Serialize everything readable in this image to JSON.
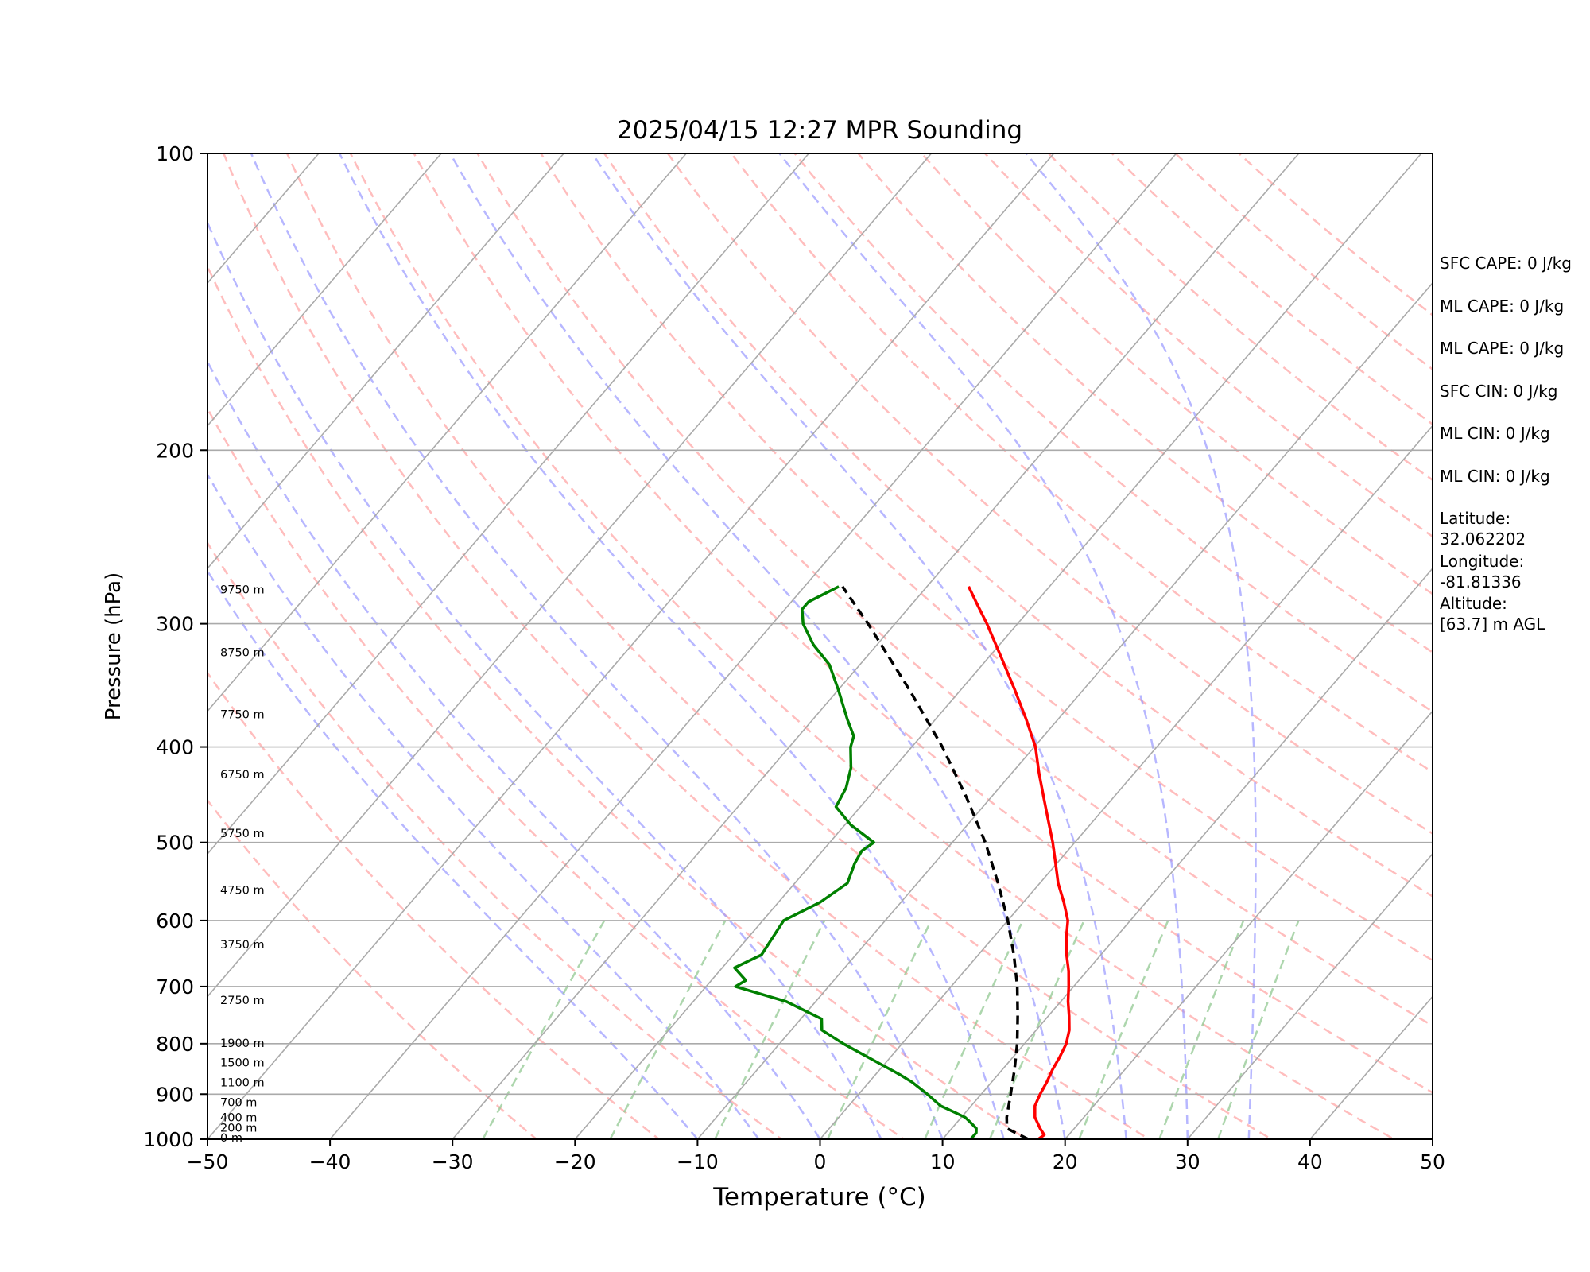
{
  "chart_data": {
    "type": "line",
    "title": "2025/04/15 12:27 MPR Sounding",
    "xlabel": "Temperature (°C)",
    "ylabel": "Pressure (hPa)",
    "xlim": [
      -50,
      50
    ],
    "ylim": [
      1000,
      100
    ],
    "y_scale": "log",
    "x_ticks": [
      "−50",
      "−40",
      "−30",
      "−20",
      "−10",
      "0",
      "10",
      "20",
      "30",
      "40",
      "50"
    ],
    "y_ticks": [
      "100",
      "200",
      "300",
      "400",
      "500",
      "600",
      "700",
      "800",
      "900",
      "1000"
    ],
    "grid": true,
    "series": [
      {
        "color": "#ff0000",
        "points": [
          [
            1000,
            17.8
          ],
          [
            990,
            18.0
          ],
          [
            975,
            17.2
          ],
          [
            950,
            16.0
          ],
          [
            925,
            15.2
          ],
          [
            900,
            14.8
          ],
          [
            875,
            14.5
          ],
          [
            850,
            14.1
          ],
          [
            825,
            13.8
          ],
          [
            800,
            13.4
          ],
          [
            775,
            12.7
          ],
          [
            750,
            11.7
          ],
          [
            725,
            10.6
          ],
          [
            700,
            9.6
          ],
          [
            675,
            8.5
          ],
          [
            650,
            7.2
          ],
          [
            625,
            6.0
          ],
          [
            600,
            4.9
          ],
          [
            575,
            3.3
          ],
          [
            550,
            1.5
          ],
          [
            525,
            -0.1
          ],
          [
            500,
            -1.8
          ],
          [
            475,
            -3.7
          ],
          [
            450,
            -5.7
          ],
          [
            425,
            -7.8
          ],
          [
            400,
            -9.9
          ],
          [
            375,
            -12.6
          ],
          [
            350,
            -15.6
          ],
          [
            325,
            -18.9
          ],
          [
            300,
            -22.5
          ],
          [
            287,
            -24.6
          ],
          [
            275,
            -26.6
          ]
        ]
      },
      {
        "color": "#008000",
        "points": [
          [
            1000,
            12.3
          ],
          [
            985,
            12.3
          ],
          [
            975,
            12.0
          ],
          [
            960,
            11.0
          ],
          [
            950,
            10.3
          ],
          [
            940,
            9.2
          ],
          [
            925,
            7.5
          ],
          [
            900,
            5.6
          ],
          [
            875,
            3.5
          ],
          [
            860,
            2.0
          ],
          [
            850,
            0.9
          ],
          [
            800,
            -4.8
          ],
          [
            775,
            -7.5
          ],
          [
            755,
            -8.3
          ],
          [
            725,
            -12.4
          ],
          [
            700,
            -17.6
          ],
          [
            690,
            -17.2
          ],
          [
            670,
            -19.0
          ],
          [
            650,
            -17.7
          ],
          [
            600,
            -18.3
          ],
          [
            575,
            -16.6
          ],
          [
            550,
            -15.7
          ],
          [
            525,
            -16.5
          ],
          [
            510,
            -16.8
          ],
          [
            500,
            -16.4
          ],
          [
            480,
            -19.5
          ],
          [
            460,
            -22.0
          ],
          [
            440,
            -22.5
          ],
          [
            420,
            -23.5
          ],
          [
            400,
            -25.0
          ],
          [
            390,
            -25.5
          ],
          [
            375,
            -27.2
          ],
          [
            350,
            -30.0
          ],
          [
            330,
            -32.5
          ],
          [
            315,
            -35.2
          ],
          [
            300,
            -37.5
          ],
          [
            290,
            -38.6
          ],
          [
            285,
            -38.6
          ],
          [
            275,
            -37.2
          ]
        ]
      },
      {
        "color": "#000000",
        "style": "dashed",
        "points": [
          [
            1000,
            17.0
          ],
          [
            975,
            14.5
          ],
          [
            950,
            13.7
          ],
          [
            900,
            12.4
          ],
          [
            850,
            11.0
          ],
          [
            800,
            9.4
          ],
          [
            750,
            7.5
          ],
          [
            700,
            5.4
          ],
          [
            650,
            2.9
          ],
          [
            600,
            0.0
          ],
          [
            550,
            -3.4
          ],
          [
            500,
            -7.3
          ],
          [
            450,
            -12.0
          ],
          [
            400,
            -17.5
          ],
          [
            350,
            -24.2
          ],
          [
            300,
            -32.2
          ],
          [
            275,
            -36.9
          ]
        ]
      }
    ],
    "height_labels": [
      {
        "p": 1000,
        "label": "0 m"
      },
      {
        "p": 977,
        "label": "200 m"
      },
      {
        "p": 954,
        "label": "400 m"
      },
      {
        "p": 921,
        "label": "700 m"
      },
      {
        "p": 879,
        "label": "1100 m"
      },
      {
        "p": 839,
        "label": "1500 m"
      },
      {
        "p": 802,
        "label": "1900 m"
      },
      {
        "p": 725,
        "label": "2750 m"
      },
      {
        "p": 637,
        "label": "3750 m"
      },
      {
        "p": 561,
        "label": "4750 m"
      },
      {
        "p": 491,
        "label": "5750 m"
      },
      {
        "p": 428,
        "label": "6750 m"
      },
      {
        "p": 372,
        "label": "7750 m"
      },
      {
        "p": 322,
        "label": "8750 m"
      },
      {
        "p": 278,
        "label": "9750 m"
      }
    ],
    "colors": {
      "isotherm": "#aaaaaa",
      "dry_adiabat": "#ff9999",
      "moist_adiabat": "#9999ff",
      "mixing_ratio": "#99cc99"
    }
  },
  "side_panel": [
    "SFC CAPE: 0 J/kg",
    "ML CAPE: 0 J/kg",
    "ML CAPE: 0 J/kg",
    "SFC CIN: 0 J/kg",
    "ML CIN: 0 J/kg",
    "ML CIN: 0 J/kg",
    "Latitude:\n32.062202",
    "Longitude:\n-81.81336",
    "Altitude:\n[63.7] m AGL"
  ]
}
